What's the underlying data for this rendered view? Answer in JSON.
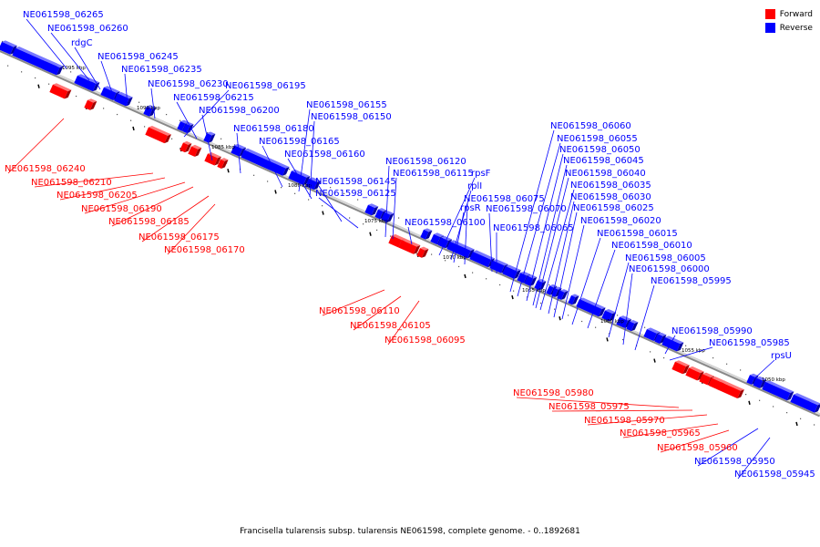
{
  "legend": {
    "forward": {
      "label": "Forward",
      "color": "#ff0000"
    },
    "reverse": {
      "label": "Reverse",
      "color": "#0000ff"
    }
  },
  "caption": "Francisella tularensis subsp. tularensis NE061598, complete genome. - 0..1892681",
  "scale_labels": [
    "1095 kbp",
    "1090 kbp",
    "1085 kbp",
    "1080 kbp",
    "1075 kbp",
    "1070 kbp",
    "1065 kbp",
    "1060 kbp",
    "1055 kbp",
    "1050 kbp"
  ],
  "reverse_genes": [
    "NE061598_06265",
    "NE061598_06260",
    "rdgC",
    "NE061598_06245",
    "NE061598_06235",
    "NE061598_06230",
    "NE061598_06195",
    "NE061598_06215",
    "NE061598_06200",
    "NE061598_06180",
    "NE061598_06165",
    "NE061598_06160",
    "NE061598_06155",
    "NE061598_06150",
    "NE061598_06145",
    "NE061598_06125",
    "NE061598_06120",
    "NE061598_06115",
    "rpsF",
    "rplI",
    "NE061598_06075",
    "rpsR",
    "NE061598_06070",
    "NE061598_06100",
    "NE061598_06065",
    "NE061598_06060",
    "NE061598_06055",
    "NE061598_06050",
    "NE061598_06045",
    "NE061598_06040",
    "NE061598_06035",
    "NE061598_06030",
    "NE061598_06025",
    "NE061598_06020",
    "NE061598_06015",
    "NE061598_06010",
    "NE061598_06005",
    "NE061598_06000",
    "NE061598_05995",
    "NE061598_05990",
    "NE061598_05985",
    "rpsU",
    "NE061598_05950",
    "NE061598_05945"
  ],
  "forward_genes": [
    "NE061598_06240",
    "NE061598_06210",
    "NE061598_06205",
    "NE061598_06190",
    "NE061598_06185",
    "NE061598_06175",
    "NE061598_06170",
    "NE061598_06110",
    "NE061598_06105",
    "NE061598_06095",
    "NE061598_05980",
    "NE061598_05975",
    "NE061598_05970",
    "NE061598_05965",
    "NE061598_05960"
  ]
}
